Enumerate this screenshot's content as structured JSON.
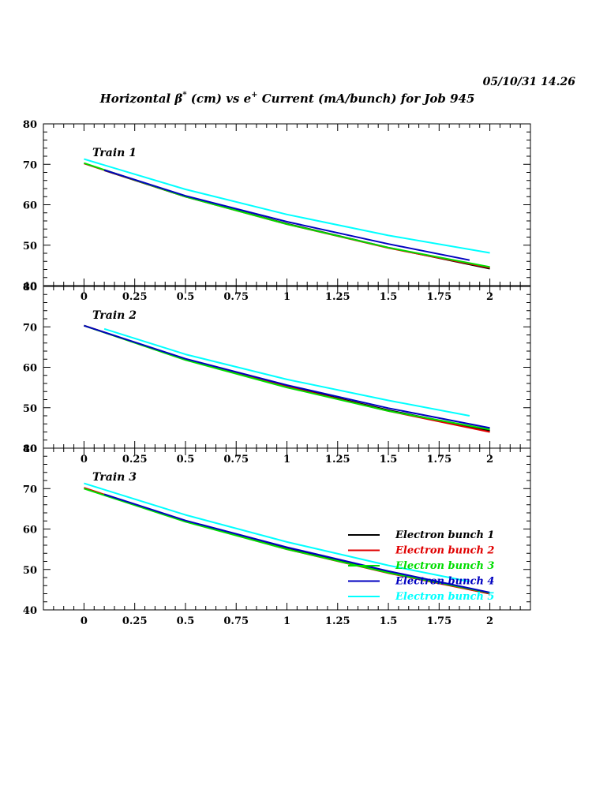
{
  "header": {
    "timestamp": "05/10/31   14.26",
    "title_part1": "Horizontal β",
    "title_sup1": "*",
    "title_part2": " (cm) vs e",
    "title_sup2": "+",
    "title_part3": " Current (mA/bunch) for Job 945"
  },
  "chart_data": {
    "type": "line",
    "xlim": [
      -0.2,
      2.2
    ],
    "x_ticks": [
      0,
      0.25,
      0.5,
      0.75,
      1,
      1.25,
      1.5,
      1.75,
      2
    ],
    "x_tick_labels": [
      "0",
      "0.25",
      "0.5",
      "0.75",
      "1",
      "1.25",
      "1.5",
      "1.75",
      "2"
    ],
    "ylim": [
      40,
      80
    ],
    "y_tick_labels": [
      "40",
      "50",
      "60",
      "70",
      "80"
    ],
    "grid": false,
    "legend": {
      "placement": "bottom-right of Train 3 panel",
      "entries": [
        {
          "name": "Electron bunch 1",
          "color": "#000000"
        },
        {
          "name": "Electron bunch 2",
          "color": "#e00000"
        },
        {
          "name": "Electron bunch 3",
          "color": "#00dd00"
        },
        {
          "name": "Electron bunch 4",
          "color": "#0000c0"
        },
        {
          "name": "Electron bunch 5",
          "color": "#00ffff"
        }
      ]
    },
    "panels": [
      {
        "label": "Train 1",
        "series": [
          {
            "name": "Electron bunch 1",
            "color": "#000000",
            "x": [
              0.1,
              0.5,
              1.0,
              1.5,
              2.0
            ],
            "y": [
              68.5,
              62.0,
              55.3,
              49.4,
              44.2
            ]
          },
          {
            "name": "Electron bunch 2",
            "color": "#e00000",
            "x": [
              0.0,
              0.5,
              1.0,
              1.5,
              2.0
            ],
            "y": [
              70.2,
              62.0,
              55.2,
              49.3,
              44.4
            ]
          },
          {
            "name": "Electron bunch 3",
            "color": "#00dd00",
            "x": [
              0.0,
              0.5,
              1.0,
              1.5,
              2.0
            ],
            "y": [
              70.3,
              62.0,
              55.2,
              49.4,
              44.6
            ]
          },
          {
            "name": "Electron bunch 4",
            "color": "#0000c0",
            "x": [
              0.1,
              0.5,
              1.0,
              1.5,
              1.9
            ],
            "y": [
              68.6,
              62.2,
              55.8,
              50.3,
              46.3
            ]
          },
          {
            "name": "Electron bunch 5",
            "color": "#00ffff",
            "x": [
              0.0,
              0.5,
              1.0,
              1.5,
              2.0
            ],
            "y": [
              71.3,
              63.8,
              57.6,
              52.4,
              48.1
            ]
          }
        ]
      },
      {
        "label": "Train 2",
        "series": [
          {
            "name": "Electron bunch 1",
            "color": "#000000",
            "x": [
              0.0,
              0.5,
              1.0,
              1.5,
              2.0
            ],
            "y": [
              70.3,
              62.0,
              55.3,
              49.4,
              44.3
            ]
          },
          {
            "name": "Electron bunch 2",
            "color": "#e00000",
            "x": [
              0.0,
              0.5,
              1.0,
              1.5,
              2.0
            ],
            "y": [
              70.3,
              62.0,
              55.2,
              49.2,
              44.0
            ]
          },
          {
            "name": "Electron bunch 3",
            "color": "#00dd00",
            "x": [
              0.0,
              0.5,
              1.0,
              1.5,
              2.0
            ],
            "y": [
              70.3,
              61.8,
              55.0,
              49.2,
              44.6
            ]
          },
          {
            "name": "Electron bunch 4",
            "color": "#0000c0",
            "x": [
              0.0,
              0.5,
              1.0,
              1.5,
              2.0
            ],
            "y": [
              70.3,
              62.1,
              55.6,
              49.9,
              45.0
            ]
          },
          {
            "name": "Electron bunch 5",
            "color": "#00ffff",
            "x": [
              0.1,
              0.5,
              1.0,
              1.5,
              1.9
            ],
            "y": [
              69.5,
              63.2,
              57.0,
              51.8,
              48.0
            ]
          }
        ]
      },
      {
        "label": "Train 3",
        "series": [
          {
            "name": "Electron bunch 1",
            "color": "#000000",
            "x": [
              0.1,
              0.5,
              1.0,
              1.5,
              2.0
            ],
            "y": [
              68.5,
              62.0,
              55.3,
              49.3,
              44.0
            ]
          },
          {
            "name": "Electron bunch 2",
            "color": "#e00000",
            "x": [
              0.0,
              0.5,
              1.0,
              1.5,
              2.0
            ],
            "y": [
              70.2,
              61.9,
              55.0,
              49.1,
              44.0
            ]
          },
          {
            "name": "Electron bunch 3",
            "color": "#00dd00",
            "x": [
              0.0,
              0.5,
              1.0,
              1.5,
              2.0
            ],
            "y": [
              70.0,
              61.8,
              55.0,
              49.2,
              44.2
            ]
          },
          {
            "name": "Electron bunch 4",
            "color": "#0000c0",
            "x": [
              0.1,
              0.5,
              1.0,
              1.5,
              2.0
            ],
            "y": [
              68.6,
              62.1,
              55.5,
              49.6,
              44.3
            ]
          },
          {
            "name": "Electron bunch 5",
            "color": "#00ffff",
            "x": [
              0.0,
              0.5,
              1.0,
              1.5,
              1.9
            ],
            "y": [
              71.3,
              63.5,
              56.8,
              51.0,
              47.0
            ]
          }
        ]
      }
    ]
  }
}
